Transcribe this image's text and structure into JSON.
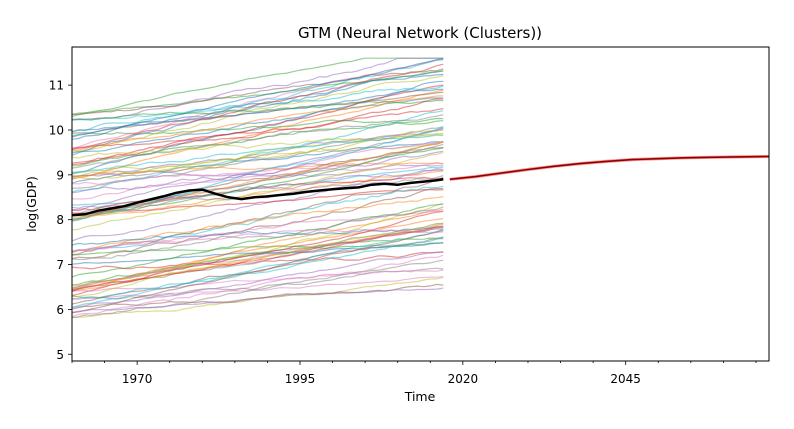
{
  "chart_data": {
    "type": "line",
    "title": "GTM (Neural Network (Clusters))",
    "xlabel": "Time",
    "ylabel": "log(GDP)",
    "xlim": [
      1960,
      2067
    ],
    "ylim": [
      4.85,
      11.85
    ],
    "x_ticks": [
      1970,
      1995,
      2020,
      2045
    ],
    "y_ticks": [
      5,
      6,
      7,
      8,
      9,
      10,
      11
    ],
    "grid": false,
    "history_range": [
      1960,
      2017
    ],
    "background_country_series": {
      "count": 90,
      "alpha": 0.5,
      "color_cycle": [
        "#1f77b4",
        "#ff7f0e",
        "#2ca02c",
        "#d62728",
        "#9467bd",
        "#8c564b",
        "#e377c2",
        "#7f7f7f",
        "#bcbd22",
        "#17becf"
      ]
    },
    "series": [
      {
        "role": "historical-mean",
        "color": "#000000",
        "points": [
          [
            1960,
            8.1
          ],
          [
            1962,
            8.12
          ],
          [
            1964,
            8.2
          ],
          [
            1966,
            8.25
          ],
          [
            1968,
            8.3
          ],
          [
            1970,
            8.38
          ],
          [
            1972,
            8.45
          ],
          [
            1974,
            8.52
          ],
          [
            1976,
            8.6
          ],
          [
            1978,
            8.65
          ],
          [
            1980,
            8.67
          ],
          [
            1982,
            8.58
          ],
          [
            1984,
            8.5
          ],
          [
            1986,
            8.46
          ],
          [
            1988,
            8.5
          ],
          [
            1990,
            8.52
          ],
          [
            1992,
            8.55
          ],
          [
            1994,
            8.58
          ],
          [
            1996,
            8.62
          ],
          [
            1998,
            8.65
          ],
          [
            2000,
            8.68
          ],
          [
            2002,
            8.7
          ],
          [
            2004,
            8.72
          ],
          [
            2006,
            8.78
          ],
          [
            2008,
            8.8
          ],
          [
            2010,
            8.78
          ],
          [
            2012,
            8.82
          ],
          [
            2014,
            8.85
          ],
          [
            2016,
            8.88
          ],
          [
            2017,
            8.9
          ]
        ]
      },
      {
        "role": "forecast",
        "color": "#8b0000",
        "points": [
          [
            2018,
            8.9
          ],
          [
            2022,
            8.96
          ],
          [
            2026,
            9.04
          ],
          [
            2030,
            9.12
          ],
          [
            2034,
            9.19
          ],
          [
            2038,
            9.25
          ],
          [
            2042,
            9.3
          ],
          [
            2046,
            9.34
          ],
          [
            2050,
            9.36
          ],
          [
            2054,
            9.38
          ],
          [
            2058,
            9.39
          ],
          [
            2062,
            9.4
          ],
          [
            2067,
            9.41
          ]
        ]
      }
    ]
  }
}
